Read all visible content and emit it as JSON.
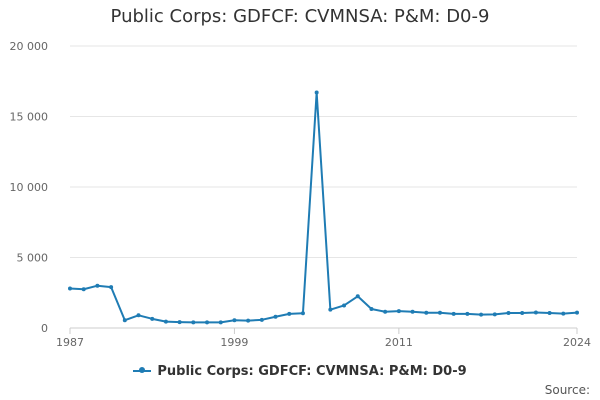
{
  "chart_data": {
    "type": "line",
    "title": "Public Corps: GDFCF: CVMNSA: P&M: D0-9",
    "xlabel": "",
    "ylabel": "",
    "x": [
      1987,
      1988,
      1989,
      1990,
      1991,
      1992,
      1993,
      1994,
      1995,
      1996,
      1997,
      1998,
      1999,
      2000,
      2001,
      2002,
      2003,
      2004,
      2005,
      2006,
      2007,
      2008,
      2009,
      2010,
      2011,
      2012,
      2013,
      2014,
      2015,
      2016,
      2017,
      2018,
      2019,
      2020,
      2021,
      2022,
      2023,
      2024
    ],
    "x_tick_labels": [
      "1987",
      "1999",
      "2011",
      "2024"
    ],
    "xlim": [
      1987,
      2024
    ],
    "ylim": [
      0,
      20000
    ],
    "y_ticks": [
      0,
      5000,
      10000,
      15000,
      20000
    ],
    "y_tick_labels": [
      "0",
      "5 000",
      "10 000",
      "15 000",
      "20 000"
    ],
    "grid": true,
    "legend_position": "bottom",
    "series": [
      {
        "name": "Public Corps: GDFCF: CVMNSA: P&M: D0-9",
        "color": "#1f7cb4",
        "values": [
          2800,
          2750,
          3000,
          2900,
          550,
          900,
          650,
          450,
          420,
          400,
          400,
          400,
          550,
          520,
          580,
          800,
          1000,
          1050,
          16700,
          1300,
          1600,
          2250,
          1350,
          1150,
          1200,
          1150,
          1080,
          1080,
          1000,
          1000,
          950,
          970,
          1060,
          1060,
          1100,
          1060,
          1020,
          1090
        ]
      }
    ]
  },
  "source_label": "Source:"
}
